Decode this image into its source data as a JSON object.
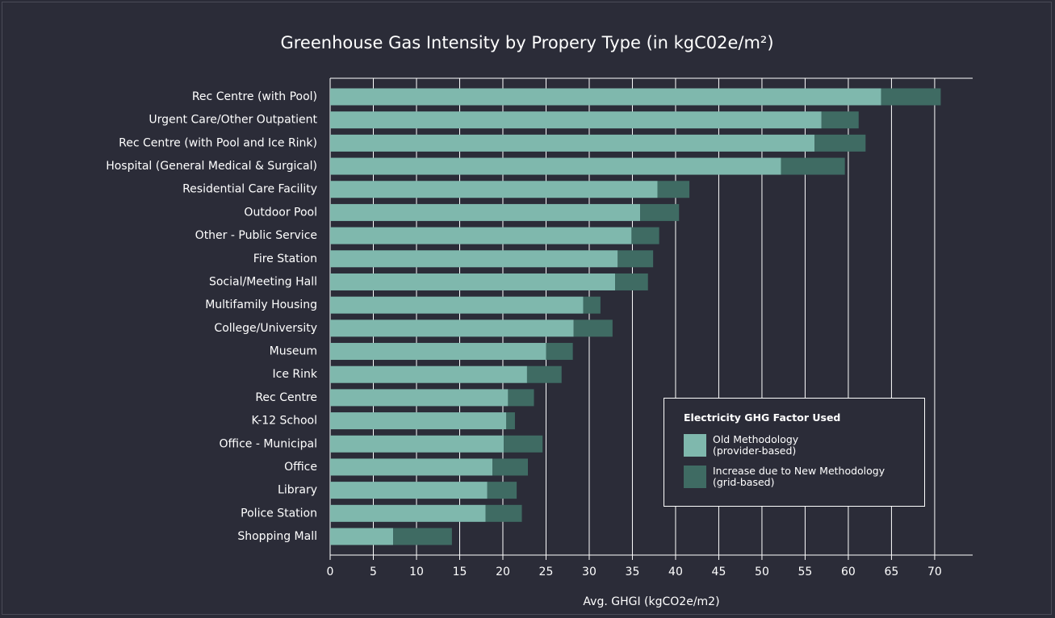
{
  "chart_data": {
    "type": "stacked_barh",
    "title": "Greenhouse Gas Intensity by Propery Type (in kgC02e/m²)",
    "x_label": "Avg. GHGI (kgCO2e/m2)",
    "legend_title": "Electricity GHG Factor Used",
    "categories": [
      "Rec Centre (with Pool)",
      "Urgent Care/Other Outpatient",
      "Rec Centre (with Pool and Ice Rink)",
      "Hospital (General Medical & Surgical)",
      "Residential Care Facility",
      "Outdoor Pool",
      "Other - Public Service",
      "Fire Station",
      "Social/Meeting Hall",
      "Multifamily Housing",
      "College/University",
      "Museum",
      "Ice Rink",
      "Rec Centre",
      "K-12 School",
      "Office - Municipal",
      "Office",
      "Library",
      "Police Station",
      "Shopping Mall"
    ],
    "series": [
      {
        "name": "Old Methodology\n(provider-based)",
        "color": "#7fb8ad",
        "values": [
          63.8,
          56.9,
          56.1,
          52.2,
          37.9,
          35.9,
          34.9,
          33.3,
          33.0,
          29.3,
          28.2,
          25.0,
          22.8,
          20.6,
          20.4,
          20.1,
          18.8,
          18.2,
          18.0,
          7.3
        ]
      },
      {
        "name": "Increase due to New Methodology\n(grid-based)",
        "color": "#3f6b63",
        "values": [
          6.9,
          4.3,
          5.9,
          7.4,
          3.7,
          4.5,
          3.2,
          4.1,
          3.8,
          2.0,
          4.5,
          3.1,
          4.0,
          3.0,
          1.0,
          4.5,
          4.1,
          3.4,
          4.2,
          6.8
        ]
      }
    ],
    "xlim": [
      0,
      74.4
    ],
    "xticks": [
      0,
      5,
      10,
      15,
      20,
      25,
      30,
      35,
      40,
      45,
      50,
      55,
      60,
      65,
      70
    ],
    "grid": true
  }
}
